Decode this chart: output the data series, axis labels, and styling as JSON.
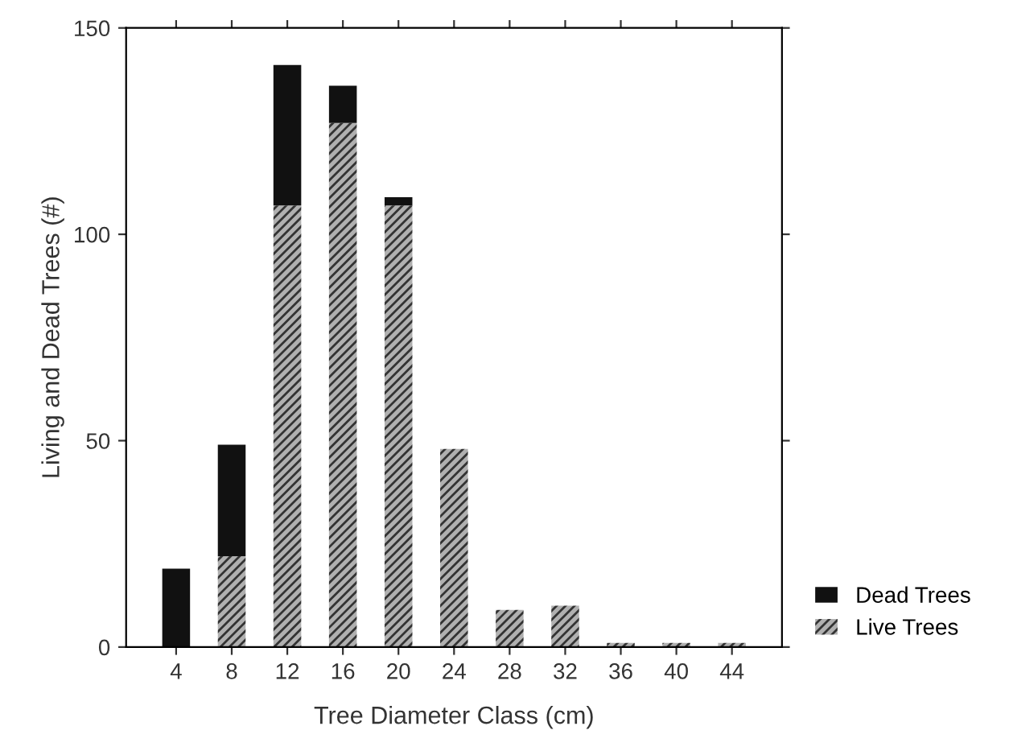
{
  "chart_data": {
    "type": "bar",
    "stacked": true,
    "xlabel": "Tree Diameter Class (cm)",
    "ylabel": "Living and Dead Trees (#)",
    "categories": [
      "4",
      "8",
      "12",
      "16",
      "20",
      "24",
      "28",
      "32",
      "36",
      "40",
      "44"
    ],
    "series": [
      {
        "name": "Live Trees",
        "color": "#b0b0b0",
        "values": [
          0,
          22,
          107,
          127,
          107,
          48,
          9,
          10,
          1,
          1,
          1
        ]
      },
      {
        "name": "Dead Trees",
        "color": "#111111",
        "values": [
          19,
          27,
          34,
          9,
          2,
          0,
          0,
          0,
          0,
          0,
          0
        ]
      }
    ],
    "ylim": [
      0,
      150
    ],
    "yticks": [
      0,
      50,
      100,
      150
    ],
    "grid": false,
    "legend": "bottom right"
  }
}
